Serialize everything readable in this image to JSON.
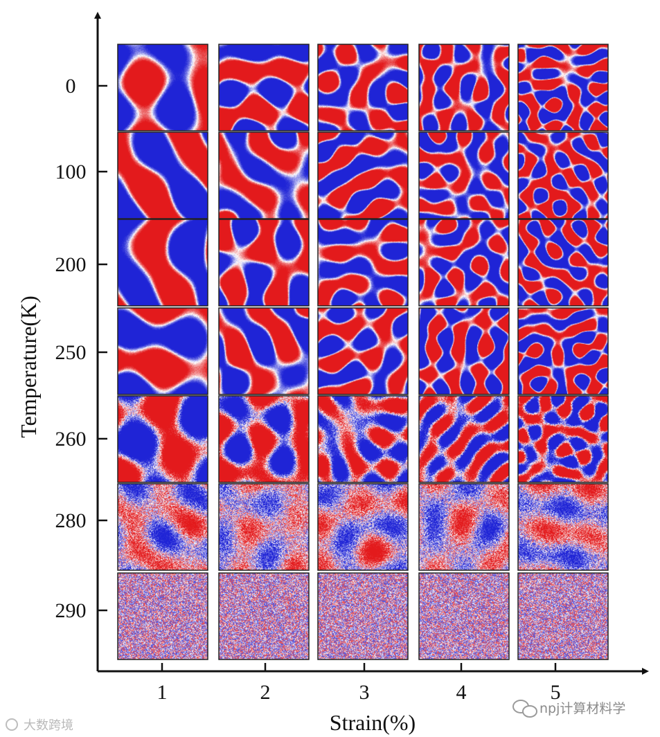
{
  "figure": {
    "y_axis": {
      "label": "Temperature(K)",
      "ticks": [
        "0",
        "100",
        "200",
        "250",
        "260",
        "280",
        "290"
      ]
    },
    "x_axis": {
      "label": "Strain(%)",
      "ticks": [
        "1",
        "2",
        "3",
        "4",
        "5"
      ]
    },
    "panel_colors": {
      "domain_a": "#e31a1c",
      "domain_b": "#1f24d6",
      "wall": "#ffffff"
    },
    "panel_description": {
      "rows": "temperature",
      "columns": "strain",
      "low_temperature_pattern": "labyrinth stripe domains",
      "high_temperature_pattern": "disordered noise"
    }
  },
  "watermarks": {
    "left": "大数跨境",
    "right": "npj计算材料学"
  }
}
